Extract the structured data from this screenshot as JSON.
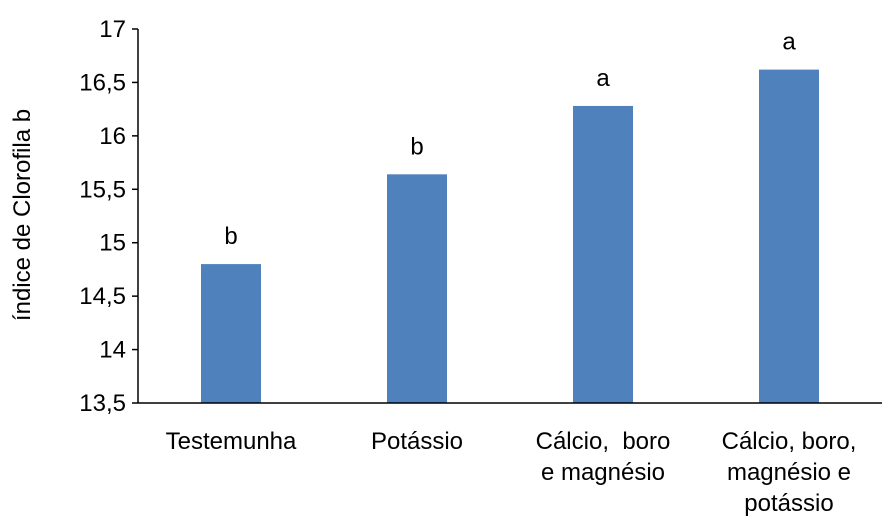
{
  "chart_data": {
    "type": "bar",
    "title": "",
    "xlabel": "",
    "ylabel": "índice de Clorofila b",
    "ylim": [
      13.5,
      17
    ],
    "yticks": [
      "13,5",
      "14",
      "14,5",
      "15",
      "15,5",
      "16",
      "16,5",
      "17"
    ],
    "ytick_values": [
      13.5,
      14,
      14.5,
      15,
      15.5,
      16,
      16.5,
      17
    ],
    "categories": [
      [
        "Testemunha"
      ],
      [
        "Potássio"
      ],
      [
        "Cálcio,  boro",
        "e magnésio"
      ],
      [
        "Cálcio, boro,",
        "magnésio e",
        "potássio"
      ]
    ],
    "values": [
      14.8,
      15.64,
      16.28,
      16.62
    ],
    "data_labels": [
      "b",
      "b",
      "a",
      "a"
    ],
    "bar_color": "#4F81BD",
    "grid": false,
    "legend": "none"
  }
}
